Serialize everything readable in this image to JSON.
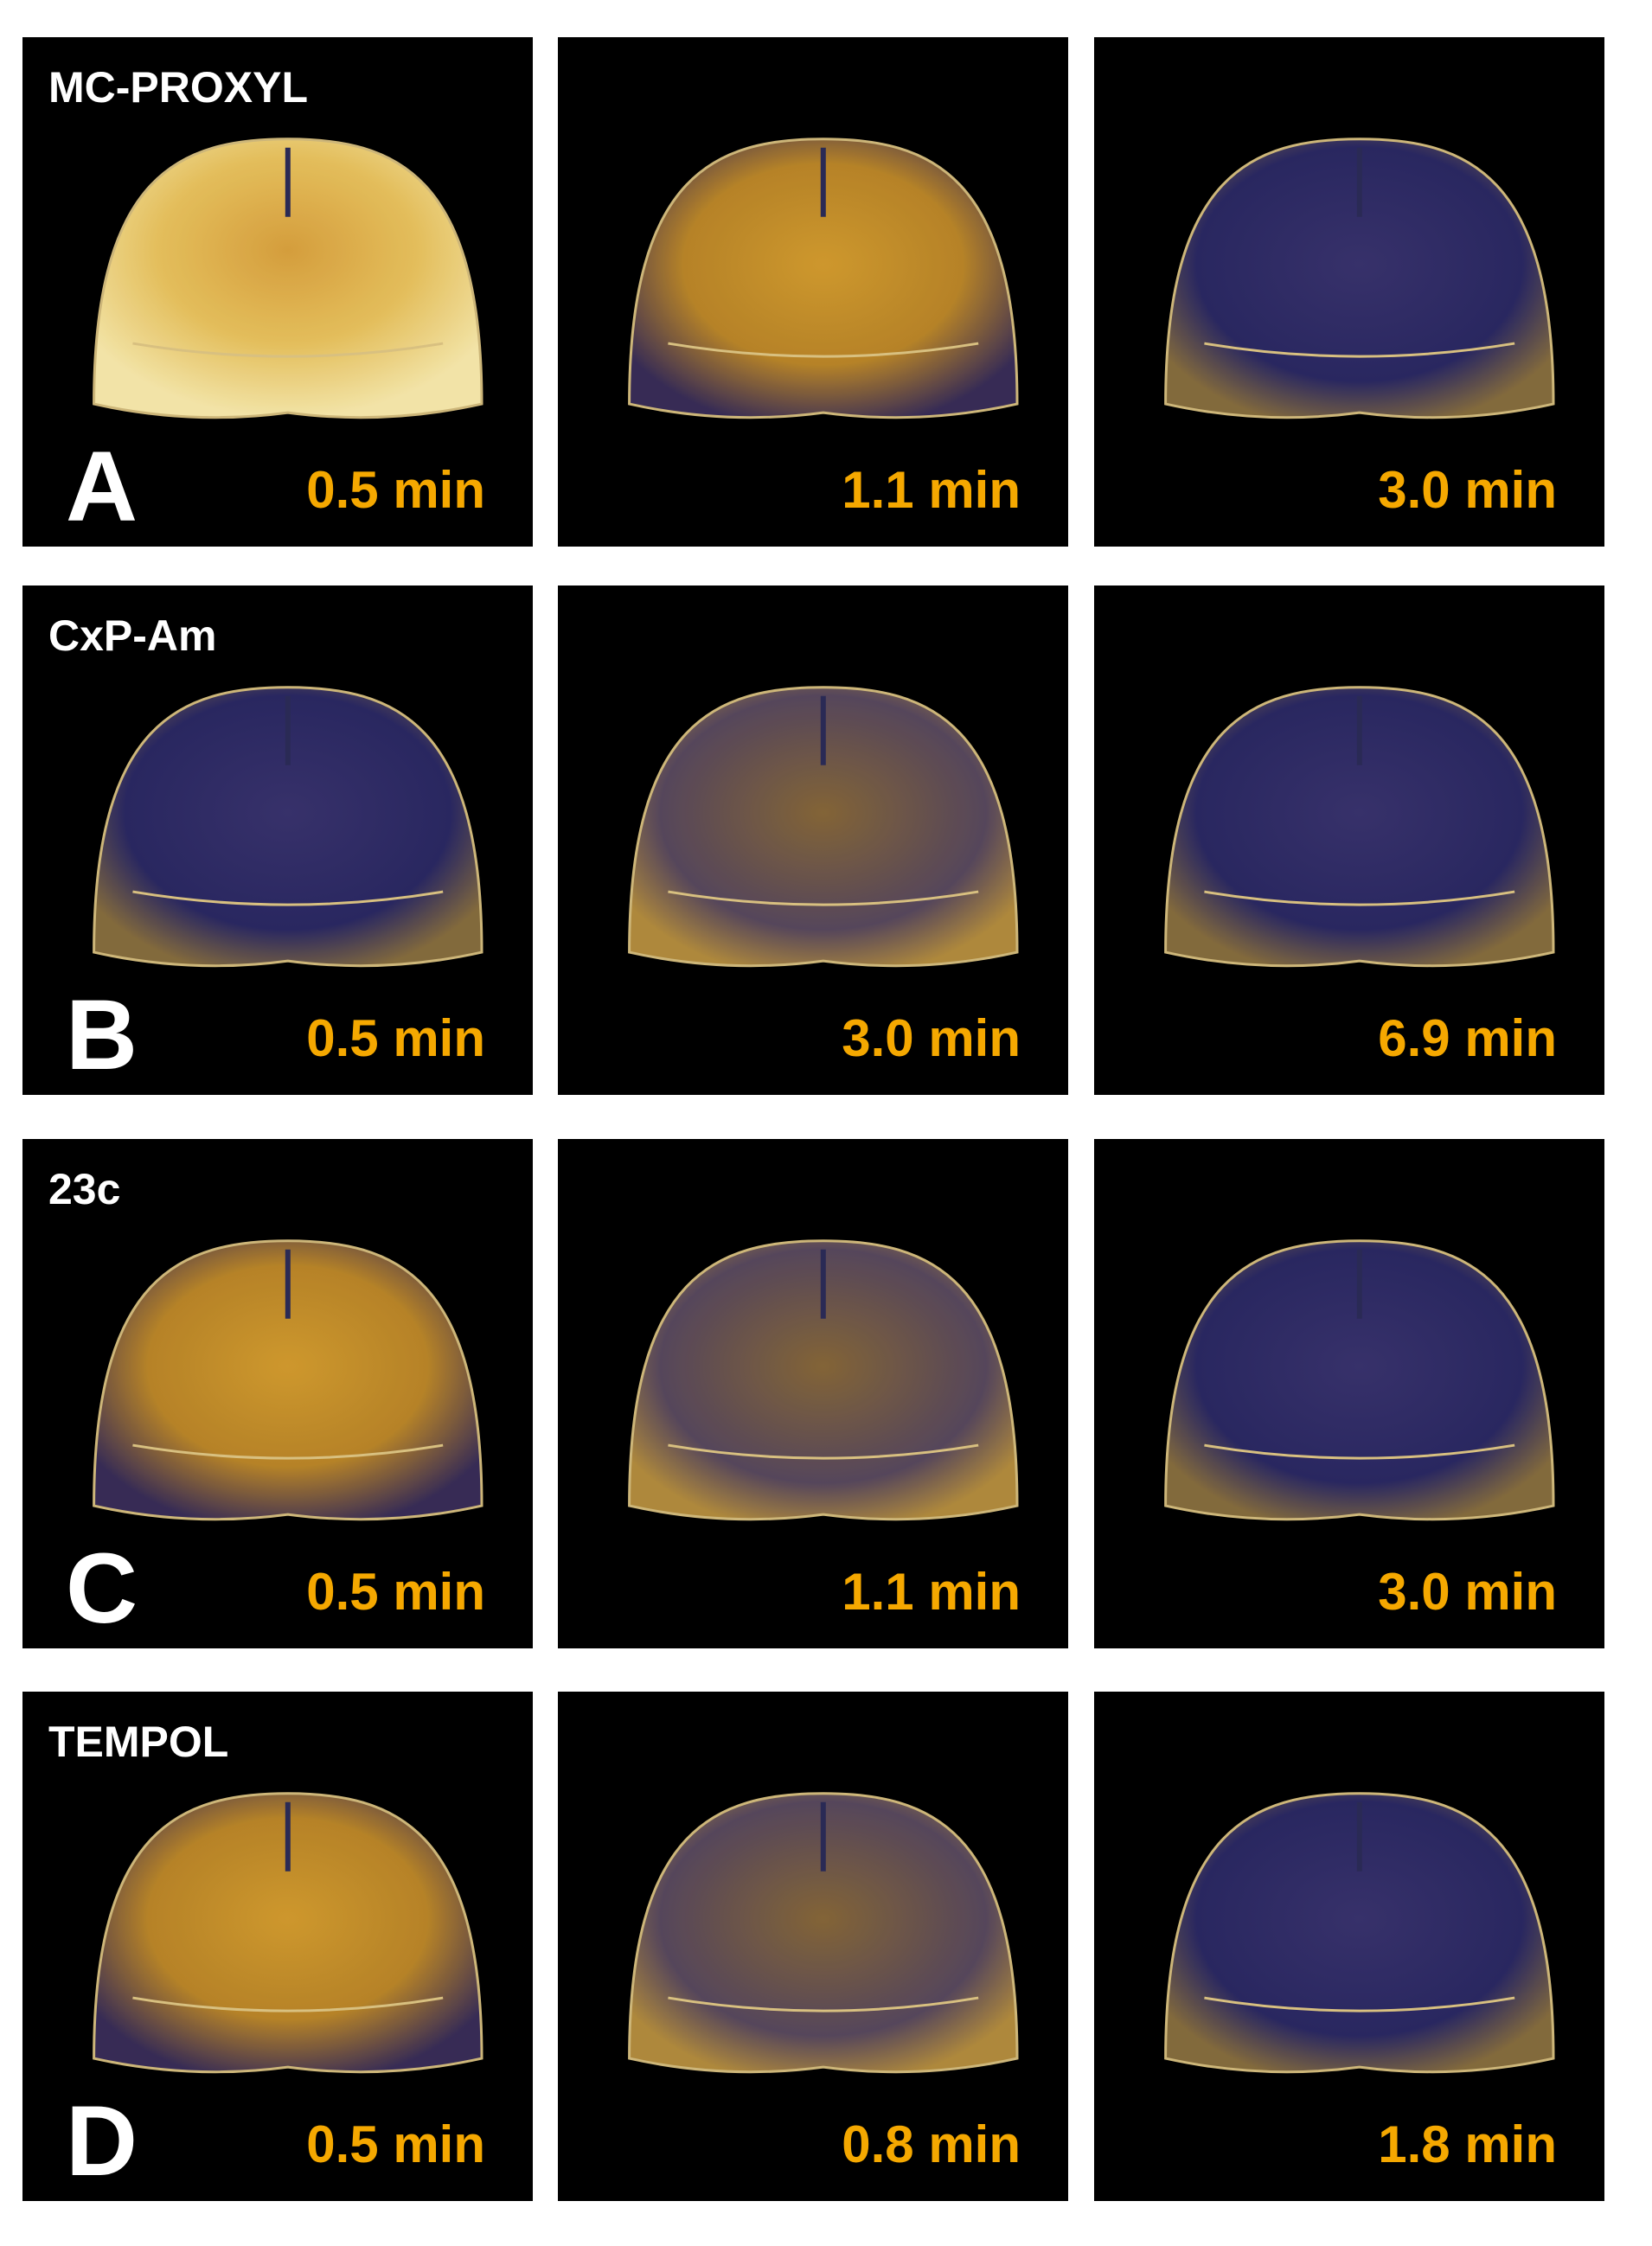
{
  "panels": [
    {
      "letter": "A",
      "compound": "MC-PROXYL",
      "times": [
        "0.5 min",
        "1.1 min",
        "3.0 min"
      ]
    },
    {
      "letter": "B",
      "compound": "CxP-Am",
      "times": [
        "0.5 min",
        "3.0 min",
        "6.9 min"
      ]
    },
    {
      "letter": "C",
      "compound": "23c",
      "times": [
        "0.5 min",
        "1.1 min",
        "3.0 min"
      ]
    },
    {
      "letter": "D",
      "compound": "TEMPOL",
      "times": [
        "0.5 min",
        "0.8 min",
        "1.8 min"
      ]
    }
  ]
}
